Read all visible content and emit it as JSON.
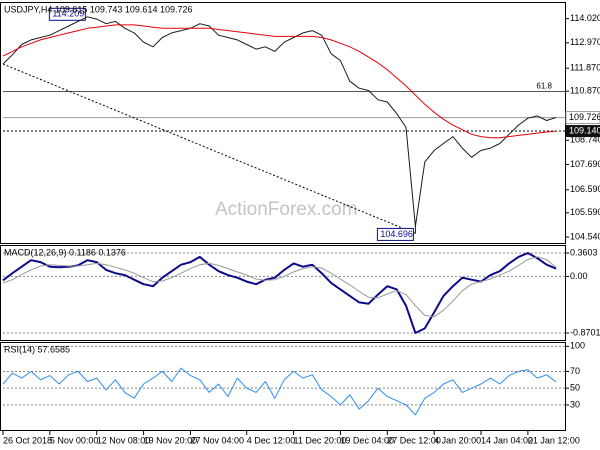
{
  "chart_data": [
    {
      "type": "line",
      "title": "USDJPY,H4  109.615 109.743 109.614 109.726",
      "ylim": [
        104.28,
        114.7
      ],
      "yticks": [
        {
          "value": 114.02,
          "label": "114.020"
        },
        {
          "value": 112.97,
          "label": "112.970"
        },
        {
          "value": 111.87,
          "label": "111.870"
        },
        {
          "value": 110.87,
          "label": "110.870"
        },
        {
          "value": 109.79,
          "label": "109.790"
        },
        {
          "value": 108.74,
          "label": "108.740"
        },
        {
          "value": 107.69,
          "label": "107.690"
        },
        {
          "value": 106.59,
          "label": "106.590"
        },
        {
          "value": 105.59,
          "label": "105.590"
        },
        {
          "value": 104.54,
          "label": "104.540"
        }
      ],
      "grid": false,
      "series": [
        {
          "color": "#1a1a1a",
          "values": [
            112.05,
            112.45,
            112.9,
            113.1,
            113.2,
            113.3,
            113.5,
            113.7,
            113.9,
            114.1,
            114.0,
            113.8,
            113.9,
            113.6,
            113.4,
            113.0,
            112.8,
            113.2,
            113.4,
            113.5,
            113.6,
            113.8,
            113.7,
            113.3,
            113.2,
            113.1,
            112.9,
            112.7,
            112.8,
            112.6,
            113.0,
            113.2,
            113.4,
            113.5,
            113.3,
            112.5,
            112.2,
            111.3,
            111.0,
            110.9,
            110.5,
            110.4,
            109.9,
            109.3,
            105.0,
            107.8,
            108.3,
            108.6,
            108.9,
            108.4,
            108.0,
            108.3,
            108.4,
            108.6,
            109.0,
            109.4,
            109.7,
            109.8,
            109.6,
            109.73
          ]
        },
        {
          "color": "#e8000b",
          "values": [
            112.4,
            112.6,
            112.8,
            112.95,
            113.1,
            113.2,
            113.3,
            113.4,
            113.5,
            113.6,
            113.65,
            113.7,
            113.75,
            113.75,
            113.75,
            113.7,
            113.65,
            113.6,
            113.6,
            113.6,
            113.6,
            113.6,
            113.6,
            113.55,
            113.5,
            113.45,
            113.4,
            113.35,
            113.3,
            113.25,
            113.25,
            113.25,
            113.25,
            113.25,
            113.2,
            113.1,
            112.95,
            112.8,
            112.6,
            112.35,
            112.1,
            111.8,
            111.45,
            111.1,
            110.7,
            110.3,
            109.95,
            109.65,
            109.4,
            109.2,
            109.0,
            108.9,
            108.85,
            108.85,
            108.9,
            108.95,
            109.0,
            109.05,
            109.1,
            109.14
          ]
        }
      ],
      "fib_level": {
        "ratio": 61.8,
        "price": 110.86
      },
      "current_price": 109.726,
      "ma_price": {
        "value": 109.14,
        "label": "109.140"
      },
      "high": 114.209,
      "low": 104.696,
      "watermark": "ActionForex.com"
    },
    {
      "type": "line",
      "title": "MACD(12,26,9) 0.1186 0.1376",
      "ylim": [
        -0.978,
        0.468
      ],
      "yticks": [
        0.3603,
        {
          "value": 0,
          "label": "0.00"
        },
        -0.8701
      ],
      "grid": true,
      "series": [
        {
          "color": "#0b0b8c",
          "values": [
            -0.06,
            0.05,
            0.15,
            0.25,
            0.22,
            0.15,
            0.14,
            0.15,
            0.17,
            0.25,
            0.22,
            0.1,
            0.05,
            0.02,
            -0.05,
            -0.12,
            -0.15,
            -0.02,
            0.08,
            0.18,
            0.22,
            0.3,
            0.18,
            0.08,
            0.02,
            -0.02,
            -0.08,
            -0.12,
            -0.05,
            -0.02,
            0.1,
            0.2,
            0.15,
            0.18,
            0.05,
            -0.1,
            -0.2,
            -0.3,
            -0.4,
            -0.42,
            -0.28,
            -0.15,
            -0.2,
            -0.45,
            -0.87,
            -0.8,
            -0.55,
            -0.3,
            -0.15,
            -0.02,
            -0.05,
            -0.08,
            0.02,
            0.08,
            0.2,
            0.3,
            0.36,
            0.28,
            0.18,
            0.12
          ]
        },
        {
          "color": "#9a9a9a",
          "values": [
            -0.1,
            -0.05,
            0.03,
            0.1,
            0.16,
            0.18,
            0.17,
            0.16,
            0.16,
            0.18,
            0.2,
            0.18,
            0.14,
            0.1,
            0.05,
            -0.02,
            -0.08,
            -0.07,
            -0.02,
            0.05,
            0.12,
            0.18,
            0.2,
            0.17,
            0.12,
            0.07,
            0.02,
            -0.04,
            -0.06,
            -0.05,
            0.0,
            0.07,
            0.12,
            0.15,
            0.13,
            0.05,
            -0.04,
            -0.13,
            -0.23,
            -0.32,
            -0.33,
            -0.27,
            -0.22,
            -0.28,
            -0.45,
            -0.6,
            -0.62,
            -0.52,
            -0.38,
            -0.22,
            -0.12,
            -0.08,
            -0.04,
            0.02,
            0.08,
            0.17,
            0.26,
            0.3,
            0.26,
            0.14
          ]
        }
      ]
    },
    {
      "type": "line",
      "title": "RSI(14) 57.6585",
      "ylim": [
        0,
        104
      ],
      "yticks": [
        100,
        70,
        50,
        30
      ],
      "grid": true,
      "categories": [
        "26 Oct 2018",
        null,
        null,
        null,
        null,
        "5 Nov 00:00",
        null,
        null,
        null,
        null,
        "12 Nov 08:00",
        null,
        null,
        null,
        null,
        "19 Nov 20:00",
        null,
        null,
        null,
        null,
        "27 Nov 04:00",
        null,
        null,
        null,
        null,
        null,
        "4 Dec 12:00",
        null,
        null,
        null,
        null,
        "11 Dec 20:00",
        null,
        null,
        null,
        null,
        "19 Dec 04:00",
        null,
        null,
        null,
        null,
        "27 Dec 12:00",
        null,
        null,
        null,
        null,
        "4 Jan 20:00",
        null,
        null,
        null,
        null,
        "14 Jan 04:00",
        null,
        null,
        null,
        null,
        "21 Jan 12:00",
        null,
        null,
        null
      ],
      "series": [
        {
          "color": "#2f8fef",
          "values": [
            55,
            68,
            62,
            70,
            60,
            65,
            55,
            66,
            70,
            58,
            62,
            48,
            60,
            45,
            38,
            55,
            62,
            70,
            58,
            74,
            65,
            60,
            45,
            55,
            40,
            62,
            50,
            45,
            58,
            38,
            60,
            70,
            62,
            66,
            48,
            40,
            30,
            42,
            25,
            35,
            50,
            40,
            35,
            30,
            18,
            38,
            45,
            55,
            60,
            45,
            50,
            55,
            62,
            55,
            65,
            70,
            72,
            62,
            66,
            57.66
          ]
        }
      ]
    }
  ]
}
